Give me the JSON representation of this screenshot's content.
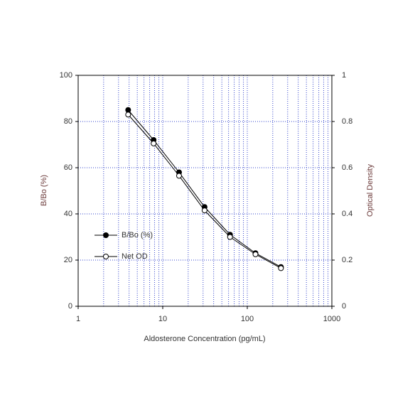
{
  "chart_data": {
    "type": "line",
    "x_label": "Aldosterone Concentration (pg/mL)",
    "y_label": "B/Bo (%)",
    "y2_label": "Optical Density",
    "x": [
      3.9,
      7.8,
      15.6,
      31.25,
      62.5,
      125,
      250
    ],
    "series": [
      {
        "name": "B/Bo (%)",
        "color": "#000000",
        "marker": "filled",
        "values": [
          85,
          72,
          58,
          43,
          31,
          23,
          17
        ]
      },
      {
        "name": "Net OD",
        "color": "#000000",
        "marker": "open",
        "axis": "y2",
        "values": [
          0.83,
          0.705,
          0.565,
          0.415,
          0.3,
          0.225,
          0.165
        ]
      }
    ],
    "xlim": [
      1,
      1000
    ],
    "xticks": [
      1,
      10,
      100,
      1000
    ],
    "x_log": true,
    "ylim": [
      0,
      100
    ],
    "yticks": [
      0,
      20,
      40,
      60,
      80,
      100
    ],
    "y2lim": [
      0,
      1
    ],
    "y2ticks": [
      0,
      0.2,
      0.4,
      0.6,
      0.8,
      1
    ],
    "grid": true,
    "grid_color": "#3344cc",
    "legend": "left"
  }
}
